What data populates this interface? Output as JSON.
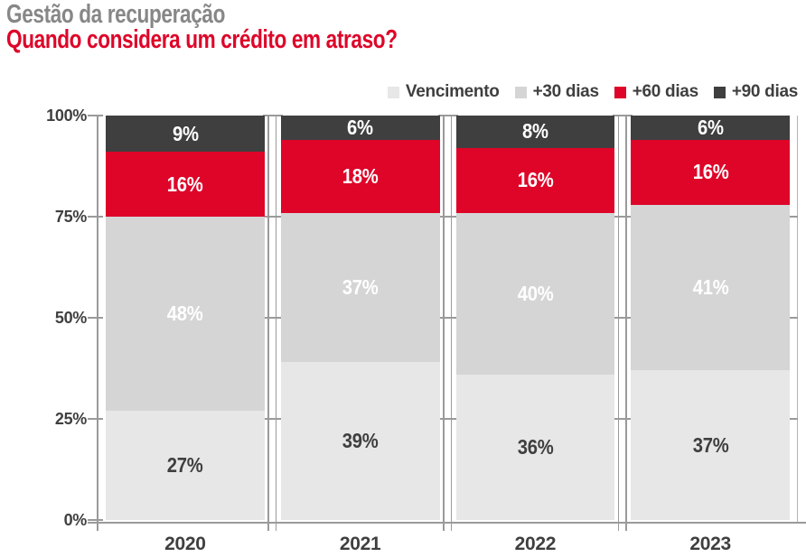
{
  "header": {
    "pretitle": "Gestão da recuperação",
    "title": "Quando considera um crédito em atraso?"
  },
  "legend": [
    {
      "label": "Vencimento",
      "color": "#e7e7e7"
    },
    {
      "label": "+30 dias",
      "color": "#d5d5d5"
    },
    {
      "label": "+60 dias",
      "color": "#de0529"
    },
    {
      "label": "+90 dias",
      "color": "#3f3f3f"
    }
  ],
  "chart_data": {
    "type": "bar",
    "stacked": true,
    "title": "Quando considera um crédito em atraso?",
    "subtitle_above": "Gestão da recuperação",
    "categories": [
      "2020",
      "2021",
      "2022",
      "2023"
    ],
    "series": [
      {
        "name": "Vencimento",
        "color": "#e7e7e7",
        "label_color": "#3f3f3f",
        "values": [
          27,
          39,
          36,
          37
        ]
      },
      {
        "name": "+30 dias",
        "color": "#d5d5d5",
        "label_color": "#ffffff",
        "values": [
          48,
          37,
          40,
          41
        ]
      },
      {
        "name": "+60 dias",
        "color": "#de0529",
        "label_color": "#ffffff",
        "values": [
          16,
          18,
          16,
          16
        ]
      },
      {
        "name": "+90 dias",
        "color": "#3f3f3f",
        "label_color": "#ffffff",
        "values": [
          9,
          6,
          8,
          6
        ]
      }
    ],
    "value_suffix": "%",
    "ylim": [
      0,
      100
    ],
    "y_ticks": [
      "0%",
      "25%",
      "50%",
      "75%",
      "100%"
    ],
    "legend_position": "top-right",
    "grid": "column separators with cross ticks at 25% steps",
    "style": {
      "accent_red": "#de0529",
      "pretitle_gray": "#878787",
      "axis_text": "#3f3f3f",
      "line_gray": "#9a9a9a"
    }
  }
}
